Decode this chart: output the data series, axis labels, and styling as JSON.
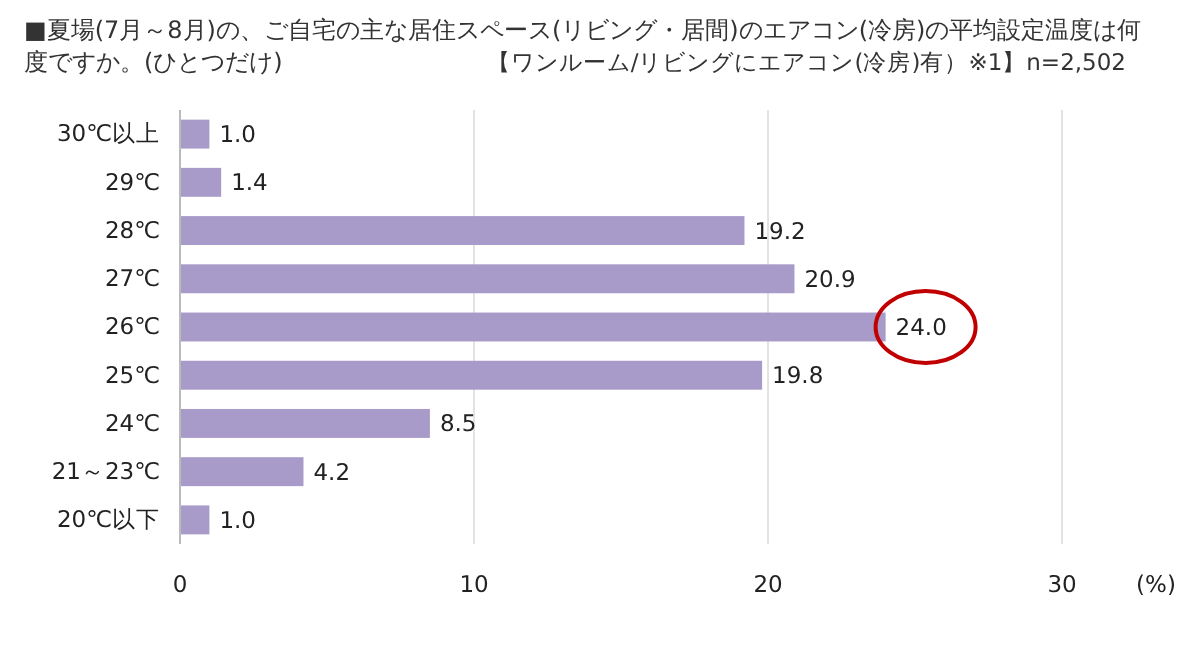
{
  "chart_data": {
    "type": "bar",
    "orientation": "horizontal",
    "title": "■夏場(7月～8月)の、ご自宅の主な居住スペース(リビング・居間)のエアコン(冷房)の平均設定温度は何度ですか。(ひとつだけ)",
    "subtitle": "【ワンルーム/リビングにエアコン(冷房)有）※1】n=2,502",
    "xlabel": "(%)",
    "categories": [
      "30℃以上",
      "29℃",
      "28℃",
      "27℃",
      "26℃",
      "25℃",
      "24℃",
      "21～23℃",
      "20℃以下"
    ],
    "values": [
      1.0,
      1.4,
      19.2,
      20.9,
      24.0,
      19.8,
      8.5,
      4.2,
      1.0
    ],
    "value_labels": [
      "1.0",
      "1.4",
      "19.2",
      "20.9",
      "24.0",
      "19.8",
      "8.5",
      "4.2",
      "1.0"
    ],
    "color": "#a99bc9",
    "xlim": [
      0,
      30
    ],
    "xticks": [
      0,
      10,
      20,
      30
    ],
    "grid": "x"
  }
}
